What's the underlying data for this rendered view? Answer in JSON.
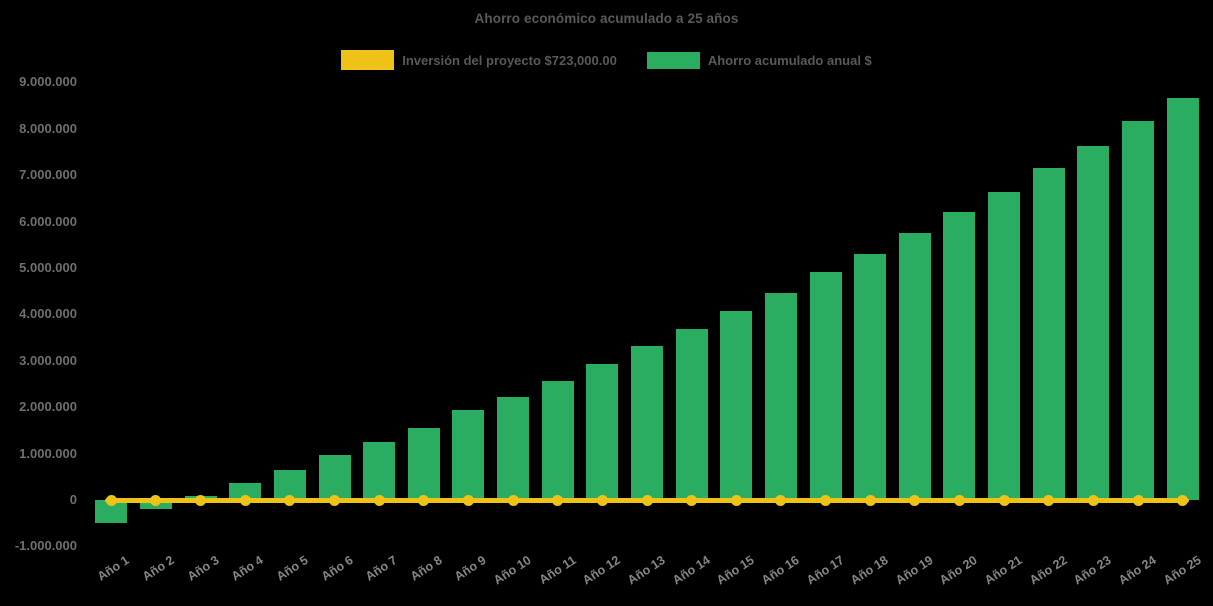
{
  "chart": {
    "title": "Ahorro económico acumulado a 25 años"
  },
  "chart_data": {
    "type": "bar",
    "title": "Ahorro económico acumulado a 25 años",
    "background": "#000000",
    "categories": [
      "Año 1",
      "Año 2",
      "Año 3",
      "Año 4",
      "Año 5",
      "Año 6",
      "Año 7",
      "Año 8",
      "Año 9",
      "Año 10",
      "Año 11",
      "Año 12",
      "Año 13",
      "Año 14",
      "Año 15",
      "Año 16",
      "Año 17",
      "Año 18",
      "Año 19",
      "Año 20",
      "Año 21",
      "Año 22",
      "Año 23",
      "Año 24",
      "Año 25"
    ],
    "series": [
      {
        "name": "Ahorro acumulado anual $",
        "type": "bar",
        "color": "#2BAD61",
        "values": [
          -500000,
          -200000,
          80000,
          360000,
          650000,
          960000,
          1260000,
          1560000,
          1930000,
          2220000,
          2560000,
          2940000,
          3310000,
          3690000,
          4080000,
          4460000,
          4910000,
          5310000,
          5760000,
          6200000,
          6640000,
          7150000,
          7630000,
          8170000,
          8670000
        ]
      },
      {
        "name": "Inversión del proyecto $723,000.00",
        "type": "line",
        "color": "#EEC216",
        "marker": "circle",
        "plotted_constant_value": 0
      }
    ],
    "legend": [
      {
        "label": "Inversión del proyecto $723,000.00",
        "color": "#EEC216"
      },
      {
        "label": "Ahorro acumulado anual $",
        "color": "#2BAD61"
      }
    ],
    "legend_position": "top-center",
    "grid": false,
    "ylim": [
      -1000000,
      9000000
    ],
    "y_ticks": [
      {
        "value": 9000000,
        "label": "9.000.000"
      },
      {
        "value": 8000000,
        "label": "8.000.000"
      },
      {
        "value": 7000000,
        "label": "7.000.000"
      },
      {
        "value": 6000000,
        "label": "6.000.000"
      },
      {
        "value": 5000000,
        "label": "5.000.000"
      },
      {
        "value": 4000000,
        "label": "4.000.000"
      },
      {
        "value": 3000000,
        "label": "3.000.000"
      },
      {
        "value": 2000000,
        "label": "2.000.000"
      },
      {
        "value": 1000000,
        "label": "1.000.000"
      },
      {
        "value": 0,
        "label": "0"
      },
      {
        "value": -1000000,
        "label": "-1.000.000"
      }
    ]
  }
}
